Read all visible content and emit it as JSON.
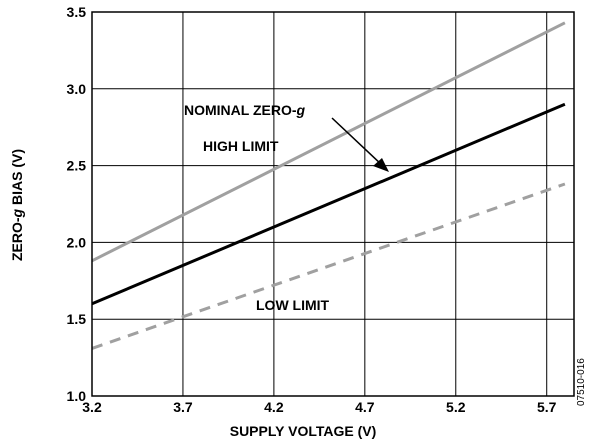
{
  "chart_data": {
    "type": "line",
    "xlabel": "SUPPLY VOLTAGE (V)",
    "ylabel": "ZERO-g BIAS (V)",
    "xlim": [
      3.2,
      5.85
    ],
    "ylim": [
      1.0,
      3.5
    ],
    "xticks": [
      "3.2",
      "3.7",
      "4.2",
      "4.7",
      "5.2",
      "5.7"
    ],
    "yticks": [
      "1.0",
      "1.5",
      "2.0",
      "2.5",
      "3.0",
      "3.5"
    ],
    "grid": true,
    "series": [
      {
        "name": "HIGH LIMIT",
        "style": "solid",
        "color": "#a0a0a0",
        "x": [
          3.2,
          5.8
        ],
        "y": [
          1.88,
          3.43
        ]
      },
      {
        "name": "NOMINAL ZERO-g",
        "style": "solid",
        "color": "#000000",
        "x": [
          3.2,
          5.8
        ],
        "y": [
          1.6,
          2.9
        ]
      },
      {
        "name": "LOW LIMIT",
        "style": "dashed",
        "color": "#a0a0a0",
        "x": [
          3.2,
          5.8
        ],
        "y": [
          1.31,
          2.38
        ]
      }
    ],
    "annotations": {
      "nominal": {
        "prefix": "NOMINAL ZERO-",
        "italic": "g"
      },
      "high": "HIGH LIMIT",
      "low": "LOW LIMIT"
    },
    "figure_id": "07510-016"
  }
}
